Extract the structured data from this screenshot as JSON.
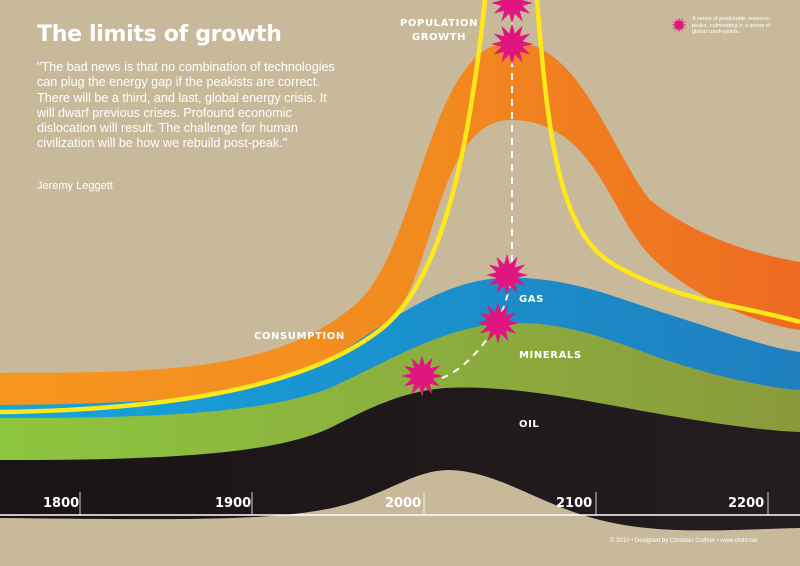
{
  "title": "The limits of growth",
  "quote": "\"The bad news is that no combination of technologies can plug the energy gap if the peakists are correct. There will be a third, and last, global energy crisis. It will dwarf previous crises. Profound economic dislocation will result. The challenge for human civilization will be how we rebuild post-peak.\"",
  "author": "Jeremy Leggett",
  "legend_text": "A series of predictable resource-peaks, culminating in a series of global crash-points.",
  "credit": "© 2010 • Designed by Christian Guthier • www.ofold.net",
  "labels": {
    "population_line1": "POPULATION",
    "population_line2": "GROWTH",
    "consumption": "CONSUMPTION",
    "gas": "GAS",
    "minerals": "MINERALS",
    "oil": "OIL"
  },
  "axis": {
    "ticks": [
      "1800",
      "1900",
      "2000",
      "2100",
      "2200"
    ]
  },
  "colors": {
    "background": "#c9b99b",
    "consumption": "#f07a1e",
    "population": "#ffe819",
    "gas": "#1a8bcb",
    "minerals": "#8fb63a",
    "oil": "#1b1416",
    "crash_marker": "#e0157f"
  },
  "icons": [
    "crash-point-star-icon"
  ]
}
